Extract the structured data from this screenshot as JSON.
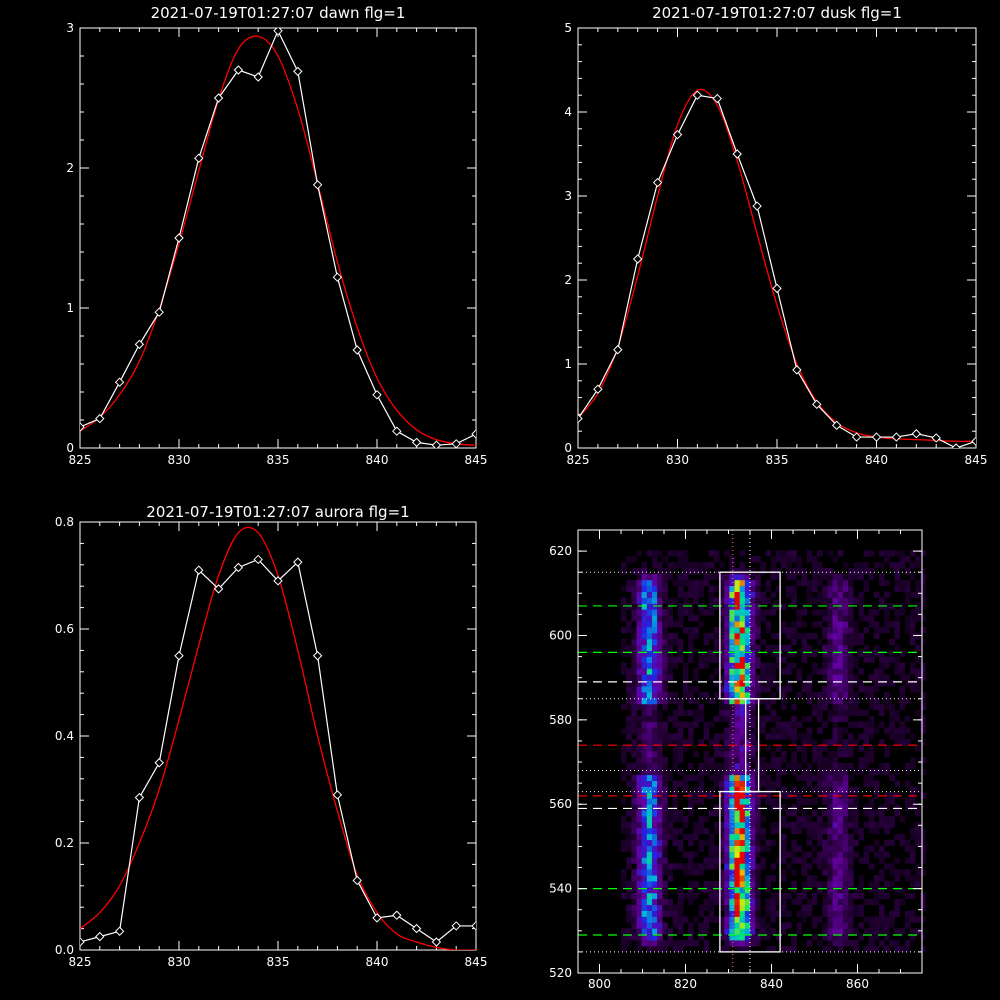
{
  "chart_data": [
    {
      "type": "line",
      "title": "2021-07-19T01:27:07 dawn flg=1",
      "xlim": [
        825,
        845
      ],
      "ylim": [
        0,
        3
      ],
      "xticks": [
        "825",
        "830",
        "835",
        "840",
        "845"
      ],
      "yticks": [
        "0",
        "1",
        "2",
        "3"
      ],
      "series": [
        {
          "role": "data",
          "color": "#ffffff",
          "markers": "diamond",
          "x": [
            825,
            826,
            827,
            828,
            829,
            830,
            831,
            832,
            833,
            834,
            835,
            836,
            837,
            838,
            839,
            840,
            841,
            842,
            843,
            844,
            845
          ],
          "y": [
            0.15,
            0.21,
            0.47,
            0.74,
            0.97,
            1.5,
            2.07,
            2.5,
            2.7,
            2.65,
            2.98,
            2.69,
            1.88,
            1.22,
            0.7,
            0.38,
            0.12,
            0.04,
            0.02,
            0.03,
            0.1
          ]
        },
        {
          "role": "fit",
          "color": "#ff0000",
          "x": [
            825,
            826,
            827,
            828,
            829,
            830,
            831,
            832,
            833,
            834,
            835,
            836,
            837,
            838,
            839,
            840,
            841,
            842,
            843,
            844,
            845
          ],
          "y": [
            0.12,
            0.22,
            0.38,
            0.62,
            0.99,
            1.46,
            1.98,
            2.49,
            2.85,
            2.94,
            2.8,
            2.42,
            1.89,
            1.33,
            0.86,
            0.5,
            0.27,
            0.13,
            0.06,
            0.03,
            0.02
          ]
        }
      ]
    },
    {
      "type": "line",
      "title": "2021-07-19T01:27:07 dusk flg=1",
      "xlim": [
        825,
        845
      ],
      "ylim": [
        0,
        5
      ],
      "xticks": [
        "825",
        "830",
        "835",
        "840",
        "845"
      ],
      "yticks": [
        "0",
        "1",
        "2",
        "3",
        "4",
        "5"
      ],
      "series": [
        {
          "role": "data",
          "color": "#ffffff",
          "markers": "diamond",
          "x": [
            825,
            826,
            827,
            828,
            829,
            830,
            831,
            832,
            833,
            834,
            835,
            836,
            837,
            838,
            839,
            840,
            841,
            842,
            843,
            844,
            845
          ],
          "y": [
            0.35,
            0.7,
            1.17,
            2.25,
            3.16,
            3.73,
            4.2,
            4.16,
            3.5,
            2.88,
            1.9,
            0.93,
            0.52,
            0.27,
            0.13,
            0.13,
            0.13,
            0.17,
            0.12,
            0.0,
            0.08
          ]
        },
        {
          "role": "fit",
          "color": "#ff0000",
          "x": [
            825,
            826,
            827,
            828,
            829,
            830,
            831,
            832,
            833,
            834,
            835,
            836,
            837,
            838,
            839,
            840,
            841,
            842,
            843,
            844,
            845
          ],
          "y": [
            0.36,
            0.65,
            1.2,
            2.05,
            3.0,
            3.85,
            4.26,
            4.08,
            3.42,
            2.55,
            1.7,
            1.0,
            0.55,
            0.3,
            0.18,
            0.13,
            0.11,
            0.1,
            0.09,
            0.08,
            0.08
          ]
        }
      ]
    },
    {
      "type": "line",
      "title": "2021-07-19T01:27:07 aurora flg=1",
      "xlim": [
        825,
        845
      ],
      "ylim": [
        0,
        0.8
      ],
      "xticks": [
        "825",
        "830",
        "835",
        "840",
        "845"
      ],
      "yticks": [
        "0.0",
        "0.2",
        "0.4",
        "0.6",
        "0.8"
      ],
      "series": [
        {
          "role": "data",
          "color": "#ffffff",
          "markers": "diamond",
          "x": [
            825,
            826,
            827,
            828,
            829,
            830,
            831,
            832,
            833,
            834,
            835,
            836,
            837,
            838,
            839,
            840,
            841,
            842,
            843,
            844,
            845
          ],
          "y": [
            0.015,
            0.025,
            0.035,
            0.285,
            0.35,
            0.55,
            0.71,
            0.675,
            0.715,
            0.73,
            0.69,
            0.725,
            0.55,
            0.29,
            0.13,
            0.06,
            0.065,
            0.04,
            0.015,
            0.045,
            0.045
          ]
        },
        {
          "role": "fit",
          "color": "#ff0000",
          "x": [
            825,
            826,
            827,
            828,
            829,
            830,
            831,
            832,
            833,
            834,
            835,
            836,
            837,
            838,
            839,
            840,
            841,
            842,
            843,
            844,
            845
          ],
          "y": [
            0.04,
            0.07,
            0.12,
            0.2,
            0.3,
            0.43,
            0.57,
            0.7,
            0.78,
            0.78,
            0.7,
            0.56,
            0.4,
            0.26,
            0.14,
            0.07,
            0.03,
            0.015,
            0.005,
            0.0,
            0.0
          ]
        }
      ]
    },
    {
      "type": "heatmap",
      "xlim": [
        795,
        875
      ],
      "ylim": [
        520,
        625
      ],
      "xticks": [
        "800",
        "820",
        "840",
        "860"
      ],
      "yticks": [
        "520",
        "540",
        "560",
        "580",
        "600",
        "620"
      ],
      "emission_bands": [
        {
          "x_center": 811,
          "width": 6,
          "y_from": 525,
          "y_to": 615,
          "intensity": 0.55
        },
        {
          "x_center": 832,
          "width": 6,
          "y_from": 525,
          "y_to": 615,
          "intensity": 1.0
        },
        {
          "x_center": 855,
          "width": 6,
          "y_from": 525,
          "y_to": 615,
          "intensity": 0.2
        }
      ],
      "boxes": [
        {
          "x": [
            828,
            842
          ],
          "y": [
            585,
            615
          ],
          "color": "#ffffff"
        },
        {
          "x": [
            828,
            842
          ],
          "y": [
            525,
            563
          ],
          "color": "#ffffff"
        },
        {
          "x": [
            834,
            837
          ],
          "y": [
            563,
            585
          ],
          "color": "#ffffff"
        }
      ],
      "dotted_vertical_lines": [
        {
          "x": 831,
          "color": "#ff8080"
        },
        {
          "x": 835,
          "color": "#ffffff"
        }
      ],
      "dotted_horizontal_lines": [
        615,
        585,
        568,
        563,
        525
      ],
      "dashed_lines": [
        {
          "y": 607,
          "color": "#00ff00"
        },
        {
          "y": 596,
          "color": "#00ff00"
        },
        {
          "y": 589,
          "color": "#ffffff"
        },
        {
          "y": 574,
          "color": "#ff0000"
        },
        {
          "y": 562,
          "color": "#ff0000"
        },
        {
          "y": 559,
          "color": "#ffffff"
        },
        {
          "y": 540,
          "color": "#00ff00"
        },
        {
          "y": 529,
          "color": "#00ff00"
        }
      ]
    }
  ]
}
